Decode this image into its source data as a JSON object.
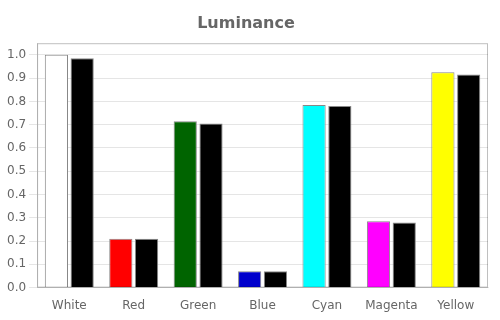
{
  "chart_data": {
    "type": "bar",
    "title": "Luminance",
    "categories": [
      "White",
      "Red",
      "Green",
      "Blue",
      "Cyan",
      "Magenta",
      "Yellow"
    ],
    "series": [
      {
        "colors": [
          "#ffffff",
          "#ff0000",
          "#006400",
          "#0000cc",
          "#00ffff",
          "#ff00ff",
          "#ffff00"
        ],
        "values": [
          1.0,
          0.21,
          0.715,
          0.07,
          0.785,
          0.285,
          0.925
        ]
      },
      {
        "color": "#000000",
        "values": [
          0.985,
          0.21,
          0.705,
          0.07,
          0.78,
          0.28,
          0.915
        ]
      }
    ],
    "ylim": [
      0.0,
      1.05
    ],
    "yticks": [
      {
        "value": 0.0,
        "label": "0.0"
      },
      0.1,
      0.2,
      0.3,
      0.4,
      0.5,
      0.6,
      0.7,
      0.8,
      0.9,
      {
        "value": 1.0,
        "label": "1.0"
      }
    ],
    "grid": true,
    "tick_labels": true
  }
}
